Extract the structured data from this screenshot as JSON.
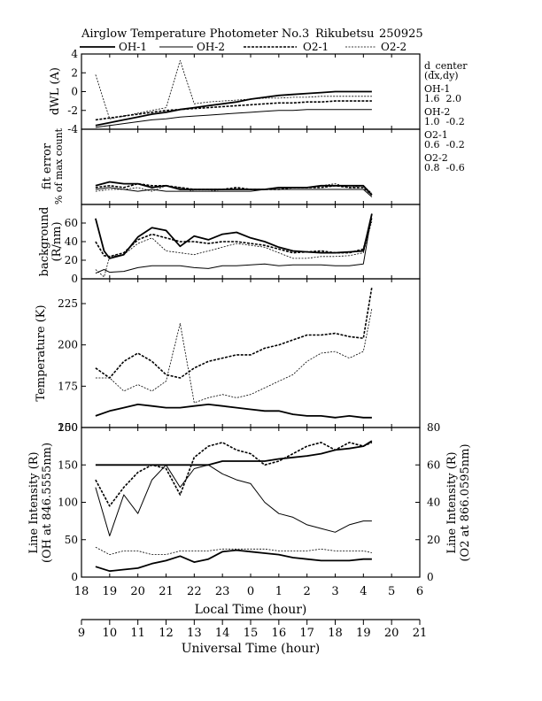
{
  "header": {
    "title": "Airglow Temperature Photometer No.3",
    "station": "Rikubetsu",
    "date_code": "250925"
  },
  "legend": [
    {
      "name": "OH-1",
      "style": "solid-thick"
    },
    {
      "name": "OH-2",
      "style": "solid-thin"
    },
    {
      "name": "O2-1",
      "style": "dashed-thick"
    },
    {
      "name": "O2-2",
      "style": "dashed-thin"
    }
  ],
  "side_notes": {
    "title_line1": "d_center",
    "title_line2": "(dx,dy)",
    "entries": [
      {
        "name": "OH-1",
        "values": "1.6  2.0"
      },
      {
        "name": "OH-2",
        "values": "1.0  -0.2"
      },
      {
        "name": "O2-1",
        "values": "0.6  -0.2"
      },
      {
        "name": "O2-2",
        "values": "0.8  -0.6"
      }
    ]
  },
  "chart_data": [
    {
      "type": "line",
      "panel": "dwl",
      "ylabel": "dWL (A)",
      "ylim": [
        -4,
        4
      ],
      "yticks": [
        "-4",
        "-2",
        "0",
        "2",
        "4"
      ],
      "x": [
        18.5,
        19,
        19.5,
        20,
        20.5,
        21,
        21.5,
        22,
        22.5,
        23,
        23.5,
        24,
        24.5,
        25,
        25.5,
        26,
        26.5,
        27,
        27.5,
        28,
        28.3
      ],
      "series": [
        {
          "name": "OH-1",
          "values": [
            -3.6,
            -3.3,
            -3.0,
            -2.7,
            -2.4,
            -2.2,
            -1.9,
            -1.7,
            -1.5,
            -1.3,
            -1.1,
            -0.8,
            -0.6,
            -0.4,
            -0.3,
            -0.2,
            -0.1,
            0.0,
            0.0,
            0.0,
            0.0
          ]
        },
        {
          "name": "OH-2",
          "values": [
            -3.8,
            -3.6,
            -3.4,
            -3.2,
            -3.0,
            -2.9,
            -2.7,
            -2.6,
            -2.5,
            -2.4,
            -2.3,
            -2.2,
            -2.1,
            -2.0,
            -2.0,
            -1.9,
            -1.9,
            -1.9,
            -1.9,
            -1.9,
            -1.9
          ]
        },
        {
          "name": "O2-1",
          "values": [
            -3.0,
            -2.8,
            -2.6,
            -2.4,
            -2.2,
            -2.0,
            -1.9,
            -1.8,
            -1.7,
            -1.6,
            -1.5,
            -1.4,
            -1.3,
            -1.2,
            -1.2,
            -1.1,
            -1.1,
            -1.0,
            -1.0,
            -1.0,
            -1.0
          ]
        },
        {
          "name": "O2-2",
          "values": [
            1.8,
            -2.9,
            -2.6,
            -2.3,
            -2.0,
            -1.7,
            3.3,
            -1.3,
            -1.1,
            -1.0,
            -0.9,
            -0.8,
            -0.7,
            -0.7,
            -0.6,
            -0.6,
            -0.5,
            -0.5,
            -0.5,
            -0.5,
            -0.5
          ]
        }
      ]
    },
    {
      "type": "line",
      "panel": "fit_error",
      "ylabel": "fit error",
      "ylabel2": "% of max count",
      "ylim": [
        0,
        4
      ],
      "yticks": [],
      "x": [
        18.5,
        19,
        19.5,
        20,
        20.5,
        21,
        21.5,
        22,
        22.5,
        23,
        23.5,
        24,
        24.5,
        25,
        25.5,
        26,
        26.5,
        27,
        27.5,
        28,
        28.3
      ],
      "series": [
        {
          "name": "OH-1",
          "values": [
            1.0,
            1.2,
            1.1,
            1.1,
            0.9,
            1.0,
            0.8,
            0.8,
            0.8,
            0.8,
            0.8,
            0.8,
            0.8,
            0.9,
            0.9,
            0.9,
            1.0,
            1.0,
            1.0,
            1.0,
            0.5
          ]
        },
        {
          "name": "OH-2",
          "values": [
            0.8,
            0.9,
            0.8,
            0.7,
            0.8,
            0.7,
            0.7,
            0.7,
            0.7,
            0.7,
            0.7,
            0.7,
            0.8,
            0.8,
            0.8,
            0.8,
            0.8,
            0.8,
            0.8,
            0.8,
            0.4
          ]
        },
        {
          "name": "O2-1",
          "values": [
            0.9,
            1.0,
            0.9,
            1.1,
            1.0,
            1.0,
            0.9,
            0.8,
            0.8,
            0.8,
            0.9,
            0.8,
            0.8,
            0.8,
            0.9,
            0.9,
            0.9,
            1.0,
            0.9,
            0.9,
            0.5
          ]
        },
        {
          "name": "O2-2",
          "values": [
            0.7,
            0.8,
            0.8,
            0.9,
            0.7,
            1.0,
            0.9,
            0.7,
            0.7,
            0.8,
            0.8,
            0.8,
            0.8,
            0.9,
            0.9,
            0.9,
            1.0,
            1.1,
            0.9,
            1.0,
            0.6
          ]
        }
      ]
    },
    {
      "type": "line",
      "panel": "background",
      "ylabel": "background",
      "ylabel2": "(R/nm)",
      "ylim": [
        0,
        80
      ],
      "yticks": [
        "0",
        "20",
        "40",
        "60"
      ],
      "x": [
        18.5,
        18.8,
        19,
        19.5,
        20,
        20.5,
        21,
        21.5,
        22,
        22.5,
        23,
        23.5,
        24,
        24.5,
        25,
        25.5,
        26,
        26.5,
        27,
        27.5,
        28,
        28.3
      ],
      "series": [
        {
          "name": "OH-1",
          "values": [
            65,
            30,
            22,
            26,
            45,
            55,
            52,
            35,
            46,
            42,
            48,
            50,
            44,
            40,
            34,
            30,
            29,
            28,
            28,
            29,
            30,
            70
          ]
        },
        {
          "name": "OH-2",
          "values": [
            6,
            10,
            7,
            8,
            12,
            14,
            14,
            14,
            12,
            11,
            14,
            14,
            15,
            16,
            14,
            15,
            15,
            15,
            14,
            14,
            16,
            70
          ]
        },
        {
          "name": "O2-1",
          "values": [
            40,
            25,
            24,
            28,
            42,
            48,
            44,
            40,
            40,
            38,
            40,
            40,
            38,
            36,
            32,
            28,
            29,
            30,
            28,
            28,
            32,
            66
          ]
        },
        {
          "name": "O2-2",
          "values": [
            10,
            2,
            24,
            26,
            38,
            44,
            30,
            28,
            26,
            30,
            34,
            38,
            36,
            34,
            28,
            22,
            22,
            24,
            24,
            25,
            28,
            62
          ]
        }
      ]
    },
    {
      "type": "line",
      "panel": "temperature",
      "ylabel": "Temperature (K)",
      "ylim": [
        150,
        240
      ],
      "yticks": [
        "150",
        "175",
        "200",
        "225"
      ],
      "x": [
        18.5,
        19,
        19.5,
        20,
        20.5,
        21,
        21.5,
        22,
        22.5,
        23,
        23.5,
        24,
        24.5,
        25,
        25.5,
        26,
        26.5,
        27,
        27.5,
        28,
        28.3
      ],
      "series": [
        {
          "name": "OH-1",
          "values": [
            157,
            160,
            162,
            164,
            163,
            162,
            162,
            163,
            164,
            163,
            162,
            161,
            160,
            160,
            158,
            157,
            157,
            156,
            157,
            156,
            156
          ]
        },
        {
          "name": "O2-1",
          "values": [
            186,
            180,
            190,
            195,
            190,
            182,
            180,
            186,
            190,
            192,
            194,
            194,
            198,
            200,
            203,
            206,
            206,
            207,
            205,
            204,
            235
          ]
        },
        {
          "name": "O2-2",
          "values": [
            180,
            180,
            172,
            176,
            172,
            178,
            213,
            165,
            168,
            170,
            168,
            170,
            174,
            178,
            182,
            190,
            195,
            196,
            192,
            196,
            222
          ]
        }
      ]
    },
    {
      "type": "line",
      "panel": "intensity",
      "ylabel": "Line Intensity (R)",
      "ylabel2": "(OH at 846.5555nm)",
      "ylabel_right": "Line Intensity (R)",
      "ylabel_right2": "(O2 at 866.0595nm)",
      "ylim": [
        0,
        200
      ],
      "yticks": [
        "0",
        "50",
        "100",
        "150",
        "200"
      ],
      "ylim_right": [
        0,
        80
      ],
      "yticks_right": [
        "0",
        "20",
        "40",
        "60",
        "80"
      ],
      "x": [
        18.5,
        19,
        19.5,
        20,
        20.5,
        21,
        21.5,
        22,
        22.5,
        23,
        23.5,
        24,
        24.5,
        25,
        25.5,
        26,
        26.5,
        27,
        27.5,
        28,
        28.3
      ],
      "series": [
        {
          "name": "OH-1",
          "values": [
            150,
            150,
            150,
            150,
            150,
            150,
            150,
            150,
            150,
            155,
            155,
            155,
            155,
            158,
            160,
            162,
            165,
            170,
            172,
            175,
            182
          ],
          "axis": "left"
        },
        {
          "name": "OH-2",
          "values": [
            120,
            55,
            110,
            85,
            130,
            150,
            120,
            145,
            150,
            138,
            130,
            125,
            100,
            85,
            80,
            70,
            65,
            60,
            70,
            75,
            75
          ],
          "axis": "left"
        },
        {
          "name": "O2-1",
          "values": [
            52,
            38,
            48,
            56,
            60,
            58,
            44,
            64,
            70,
            72,
            68,
            66,
            60,
            62,
            66,
            70,
            72,
            68,
            72,
            70,
            72
          ],
          "axis": "right"
        },
        {
          "name": "O2-2",
          "values": [
            16,
            12,
            14,
            14,
            12,
            12,
            14,
            14,
            14,
            15,
            15,
            15,
            15,
            14,
            14,
            14,
            15,
            14,
            14,
            14,
            13
          ],
          "axis": "right"
        },
        {
          "name": "OH-1 low",
          "values": [
            14,
            8,
            10,
            12,
            18,
            22,
            28,
            20,
            24,
            34,
            36,
            34,
            32,
            30,
            26,
            24,
            22,
            22,
            22,
            24,
            24
          ],
          "axis": "left"
        }
      ]
    }
  ],
  "x_axis": {
    "label": "Local Time (hour)",
    "ticks": [
      "18",
      "19",
      "20",
      "21",
      "22",
      "23",
      "0",
      "1",
      "2",
      "3",
      "4",
      "5",
      "6"
    ]
  },
  "ut_axis": {
    "label": "Universal Time (hour)",
    "ticks": [
      "9",
      "10",
      "11",
      "12",
      "13",
      "14",
      "15",
      "16",
      "17",
      "18",
      "19",
      "20",
      "21"
    ]
  }
}
